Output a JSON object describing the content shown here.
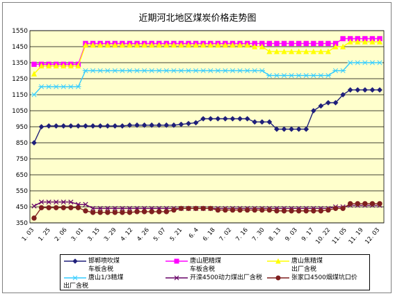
{
  "chart_data": {
    "type": "line",
    "title": "近期河北地区煤炭价格走势图",
    "ylim": [
      350,
      1550
    ],
    "yticks": [
      350,
      450,
      550,
      650,
      750,
      850,
      950,
      1050,
      1150,
      1250,
      1350,
      1450,
      1550
    ],
    "xtick_labels": [
      "1. 03",
      "1. 25",
      "2. 06",
      "3. 01",
      "3. 15",
      "3. 29",
      "4. 12",
      "4. 26",
      "5. 07",
      "5. 21",
      "6. 4",
      "6. 18",
      "7. 02",
      "7. 16",
      "7. 30",
      "8. 13",
      "9. 03",
      "9. 17",
      "10. 22",
      "11. 05",
      "11. 19",
      "12. 03"
    ],
    "grid": true,
    "legend_position": "bottom",
    "series": [
      {
        "name": "邯郸喷吹煤",
        "sub": "车板含税",
        "color": "#1f1f7a",
        "marker": "diamond",
        "values": [
          850,
          950,
          955,
          955,
          955,
          955,
          955,
          955,
          955,
          955,
          955,
          955,
          955,
          960,
          960,
          960,
          960,
          960,
          960,
          960,
          965,
          970,
          975,
          1000,
          1000,
          1000,
          1000,
          1000,
          1000,
          1000,
          980,
          980,
          980,
          935,
          935,
          935,
          935,
          935,
          1050,
          1080,
          1100,
          1100,
          1150,
          1180,
          1180,
          1180,
          1180,
          1180
        ]
      },
      {
        "name": "唐山肥精煤",
        "sub": "车板含税",
        "color": "#ff00ff",
        "marker": "square",
        "values": [
          1340,
          1340,
          1340,
          1340,
          1340,
          1340,
          1340,
          1470,
          1470,
          1470,
          1470,
          1470,
          1470,
          1470,
          1470,
          1470,
          1470,
          1470,
          1470,
          1470,
          1470,
          1470,
          1470,
          1470,
          1470,
          1470,
          1470,
          1470,
          1470,
          1470,
          1470,
          1470,
          1470,
          1470,
          1470,
          1470,
          1470,
          1470,
          1470,
          1470,
          1470,
          1470,
          1500,
          1500,
          1500,
          1500,
          1500,
          1500
        ]
      },
      {
        "name": "唐山焦精煤",
        "sub": "出厂含税",
        "color": "#ffff00",
        "marker": "triangle",
        "values": [
          1280,
          1330,
          1330,
          1330,
          1330,
          1330,
          1330,
          1460,
          1460,
          1460,
          1460,
          1460,
          1460,
          1460,
          1460,
          1460,
          1460,
          1460,
          1460,
          1460,
          1460,
          1460,
          1460,
          1460,
          1460,
          1460,
          1460,
          1460,
          1460,
          1460,
          1450,
          1450,
          1420,
          1420,
          1420,
          1420,
          1420,
          1420,
          1420,
          1420,
          1420,
          1450,
          1450,
          1480,
          1480,
          1480,
          1480,
          1480
        ]
      },
      {
        "name": "唐山1/3精煤",
        "sub": "出厂含税",
        "color": "#33ccff",
        "marker": "star",
        "values": [
          1150,
          1200,
          1200,
          1200,
          1200,
          1200,
          1200,
          1300,
          1300,
          1300,
          1300,
          1300,
          1300,
          1300,
          1300,
          1300,
          1300,
          1300,
          1300,
          1300,
          1300,
          1300,
          1300,
          1300,
          1300,
          1300,
          1300,
          1300,
          1300,
          1300,
          1300,
          1300,
          1270,
          1270,
          1270,
          1270,
          1270,
          1270,
          1270,
          1270,
          1270,
          1300,
          1300,
          1350,
          1350,
          1350,
          1350,
          1350
        ]
      },
      {
        "name": "开滦4500动力煤出厂含税",
        "sub": "",
        "color": "#660066",
        "marker": "cross",
        "values": [
          455,
          480,
          480,
          480,
          480,
          480,
          465,
          465,
          440,
          440,
          440,
          440,
          440,
          440,
          440,
          440,
          440,
          440,
          440,
          440,
          440,
          440,
          440,
          440,
          440,
          440,
          440,
          440,
          440,
          440,
          440,
          440,
          440,
          440,
          440,
          440,
          440,
          440,
          440,
          440,
          440,
          450,
          450,
          460,
          460,
          460,
          460,
          460
        ]
      },
      {
        "name": "张家口4500烟煤坑口价",
        "sub": "",
        "color": "#7f1f1f",
        "marker": "circle",
        "values": [
          380,
          445,
          445,
          445,
          445,
          445,
          445,
          425,
          415,
          415,
          415,
          415,
          415,
          415,
          420,
          420,
          420,
          420,
          420,
          430,
          440,
          440,
          440,
          440,
          440,
          430,
          430,
          430,
          430,
          430,
          430,
          430,
          430,
          425,
          425,
          425,
          425,
          425,
          425,
          425,
          430,
          440,
          440,
          470,
          470,
          470,
          470,
          470
        ]
      }
    ]
  }
}
